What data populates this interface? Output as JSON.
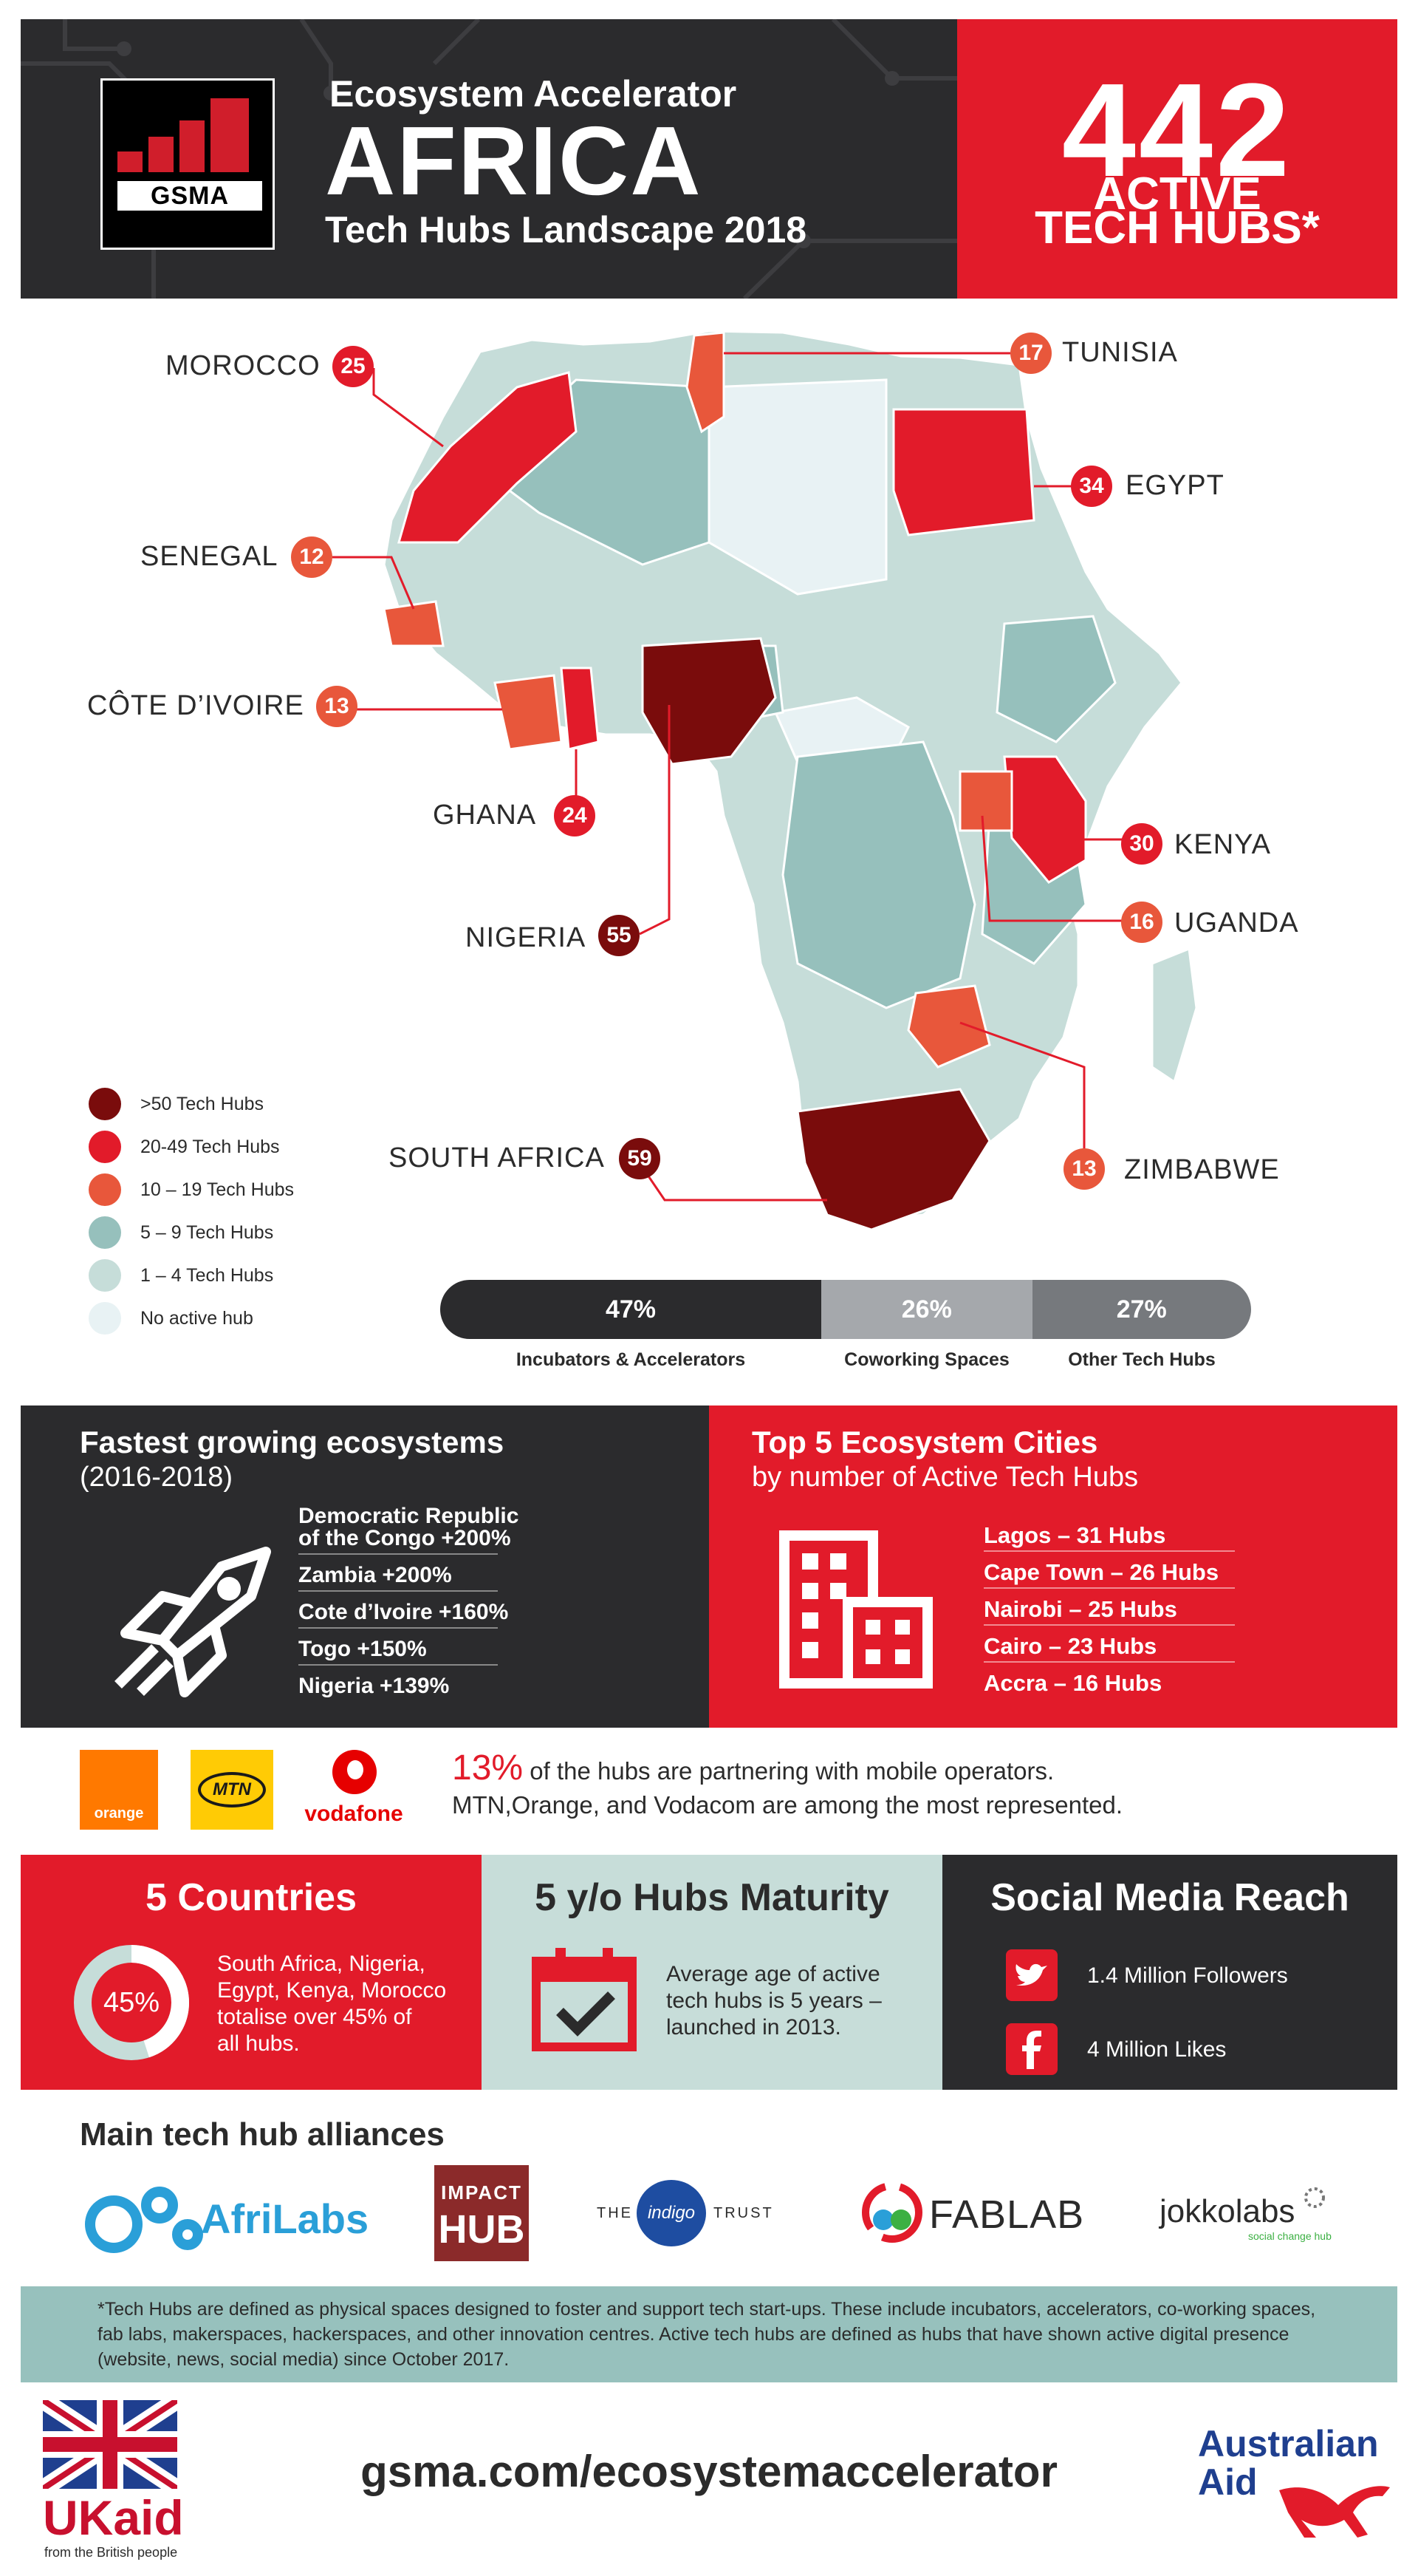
{
  "header": {
    "subtitle": "Ecosystem Accelerator",
    "title": "AFRICA",
    "year_line": "Tech Hubs Landscape 2018",
    "logo_text": "GSMA",
    "total_number": "442",
    "total_line1": "ACTIVE",
    "total_line2": "TECH HUBS*"
  },
  "map": {
    "countries": [
      {
        "name": "MOROCCO",
        "count": "25"
      },
      {
        "name": "TUNISIA",
        "count": "17"
      },
      {
        "name": "EGYPT",
        "count": "34"
      },
      {
        "name": "SENEGAL",
        "count": "12"
      },
      {
        "name": "CÔTE D’IVOIRE",
        "count": "13"
      },
      {
        "name": "GHANA",
        "count": "24"
      },
      {
        "name": "NIGERIA",
        "count": "55"
      },
      {
        "name": "KENYA",
        "count": "30"
      },
      {
        "name": "UGANDA",
        "count": "16"
      },
      {
        "name": "SOUTH AFRICA",
        "count": "59"
      },
      {
        "name": "ZIMBABWE",
        "count": "13"
      }
    ],
    "legend": [
      {
        "label": ">50 Tech Hubs",
        "color": "#7a0c0c"
      },
      {
        "label": "20-49 Tech Hubs",
        "color": "#e21b2a"
      },
      {
        "label": "10 – 19 Tech Hubs",
        "color": "#e8573b"
      },
      {
        "label": "5 – 9 Tech Hubs",
        "color": "#96c0bc"
      },
      {
        "label": "1 – 4 Tech Hubs",
        "color": "#c6ddd9"
      },
      {
        "label": "No active hub",
        "color": "#e8f2f4"
      }
    ]
  },
  "hub_types": [
    {
      "label": "Incubators & Accelerators",
      "percent_text": "47%",
      "percent": 47,
      "color": "#2b2b2d"
    },
    {
      "label": "Coworking Spaces",
      "percent_text": "26%",
      "percent": 26,
      "color": "#a5a8ac"
    },
    {
      "label": "Other Tech Hubs",
      "percent_text": "27%",
      "percent": 27,
      "color": "#76797d"
    }
  ],
  "fastest": {
    "title": "Fastest growing ecosystems",
    "period": "(2016-2018)",
    "items": [
      "Democratic Republic",
      "of the Congo +200%",
      "Zambia +200%",
      "Cote d’Ivoire +160%",
      "Togo +150%",
      "Nigeria +139%"
    ]
  },
  "top5": {
    "title": "Top 5 Ecosystem Cities",
    "subtitle": "by number of Active Tech Hubs",
    "items": [
      "Lagos – 31 Hubs",
      "Cape Town – 26 Hubs",
      "Nairobi – 25 Hubs",
      "Cairo – 23 Hubs",
      "Accra – 16 Hubs"
    ]
  },
  "partners": {
    "logos": [
      "orange",
      "MTN",
      "vodafone"
    ],
    "percent": "13%",
    "line1": "of the hubs are partnering with mobile operators.",
    "line2": "MTN,Orange, and Vodacom are among the most represented."
  },
  "panels": {
    "countries": {
      "title": "5 Countries",
      "percent": "45%",
      "percent_value": 45,
      "text": [
        "South Africa, Nigeria,",
        "Egypt, Kenya, Morocco",
        "totalise over 45% of",
        "all hubs."
      ]
    },
    "maturity": {
      "title": "5 y/o Hubs Maturity",
      "text": [
        "Average age of active",
        "tech hubs is 5 years –",
        "launched in 2013."
      ]
    },
    "social": {
      "title": "Social Media Reach",
      "twitter": "1.4 Million Followers",
      "facebook": "4 Million Likes",
      "twitter_icon": "twitter-icon",
      "facebook_icon": "facebook-icon"
    }
  },
  "alliances": {
    "title": "Main tech hub alliances",
    "afrilabs": "AfriLabs",
    "impact_line1": "IMPACT",
    "impact_line2": "HUB",
    "indigo_left": "THE",
    "indigo_mid": "indigo",
    "indigo_right": "TRUST",
    "fablab": "FABLAB",
    "jokko": "jokkolabs",
    "jokko_sub": "social change hub"
  },
  "footnote": "*Tech Hubs are defined as physical spaces designed to foster and support tech start-ups. These include incubators, accelerators, co-working spaces, fab labs, makerspaces, hackerspaces, and other innovation centres. Active tech hubs are defined as hubs that have shown active digital presence (website, news, social media) since October 2017.",
  "footer": {
    "website": "gsma.com/ecosystemaccelerator",
    "ukaid": "UKaid",
    "ukaid_sub": "from the British people",
    "aus_line1": "Australian",
    "aus_line2": "Aid"
  }
}
